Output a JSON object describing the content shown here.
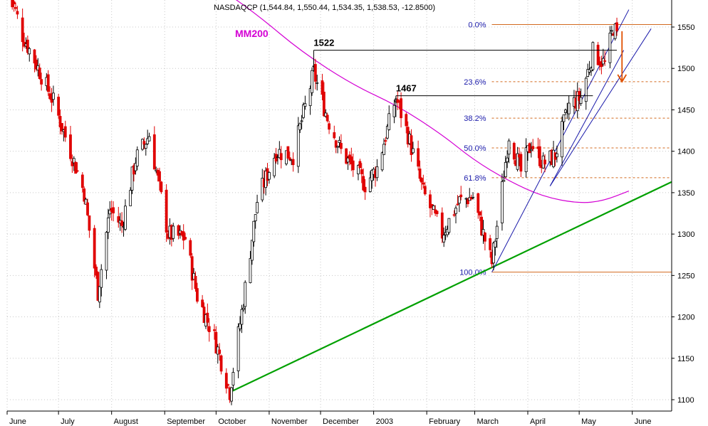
{
  "chart_data": {
    "type": "candlestick",
    "title": "NASDAQCP (1,544.84, 1,550.44, 1,534.35, 1,538.53, -12.8500)",
    "ylim": [
      1090,
      1580
    ],
    "y_ticks": [
      1100,
      1150,
      1200,
      1250,
      1300,
      1350,
      1400,
      1450,
      1500,
      1550
    ],
    "x_range": [
      "2002-06-01",
      "2003-06-24"
    ],
    "x_ticks": [
      {
        "label": "June",
        "date": "2002-06-01"
      },
      {
        "label": "July",
        "date": "2002-07-01"
      },
      {
        "label": "August",
        "date": "2002-08-01"
      },
      {
        "label": "September",
        "date": "2002-09-01"
      },
      {
        "label": "October",
        "date": "2002-10-01"
      },
      {
        "label": "November",
        "date": "2002-11-01"
      },
      {
        "label": "December",
        "date": "2002-12-01"
      },
      {
        "label": "2003",
        "date": "2003-01-01"
      },
      {
        "label": "February",
        "date": "2003-02-01"
      },
      {
        "label": "March",
        "date": "2003-03-01"
      },
      {
        "label": "April",
        "date": "2003-04-01"
      },
      {
        "label": "May",
        "date": "2003-05-01"
      },
      {
        "label": "June",
        "date": "2003-06-01"
      }
    ],
    "grid": true,
    "up_color": "#000000",
    "down_color": "#e00000",
    "price_path": [
      [
        "2002-06-03",
        1590
      ],
      [
        "2002-06-10",
        1540
      ],
      [
        "2002-06-17",
        1510
      ],
      [
        "2002-06-28",
        1460
      ],
      [
        "2002-07-08",
        1400
      ],
      [
        "2002-07-16",
        1350
      ],
      [
        "2002-07-24",
        1230
      ],
      [
        "2002-07-31",
        1330
      ],
      [
        "2002-08-07",
        1310
      ],
      [
        "2002-08-15",
        1390
      ],
      [
        "2002-08-23",
        1420
      ],
      [
        "2002-09-03",
        1300
      ],
      [
        "2002-09-13",
        1295
      ],
      [
        "2002-09-20",
        1225
      ],
      [
        "2002-09-30",
        1175
      ],
      [
        "2002-10-09",
        1110
      ],
      [
        "2002-10-17",
        1220
      ],
      [
        "2002-10-25",
        1340
      ],
      [
        "2002-11-05",
        1400
      ],
      [
        "2002-11-15",
        1395
      ],
      [
        "2002-11-27",
        1495
      ],
      [
        "2002-12-05",
        1440
      ],
      [
        "2002-12-13",
        1400
      ],
      [
        "2002-12-27",
        1360
      ],
      [
        "2003-01-03",
        1380
      ],
      [
        "2003-01-14",
        1465
      ],
      [
        "2003-01-21",
        1420
      ],
      [
        "2003-01-30",
        1350
      ],
      [
        "2003-02-10",
        1300
      ],
      [
        "2003-02-20",
        1340
      ],
      [
        "2003-02-28",
        1345
      ],
      [
        "2003-03-06",
        1300
      ],
      [
        "2003-03-11",
        1265
      ],
      [
        "2003-03-17",
        1355
      ],
      [
        "2003-03-21",
        1420
      ],
      [
        "2003-03-28",
        1375
      ],
      [
        "2003-04-03",
        1410
      ],
      [
        "2003-04-10",
        1385
      ],
      [
        "2003-04-17",
        1395
      ],
      [
        "2003-04-25",
        1455
      ],
      [
        "2003-05-02",
        1465
      ],
      [
        "2003-05-09",
        1520
      ],
      [
        "2003-05-16",
        1505
      ],
      [
        "2003-05-21",
        1550
      ],
      [
        "2003-05-23",
        1539
      ]
    ],
    "ma200": {
      "label": "MM200",
      "color": "#d400d4",
      "points": [
        [
          "2002-10-01",
          1600
        ],
        [
          "2002-10-25",
          1565
        ],
        [
          "2002-11-20",
          1520
        ],
        [
          "2002-12-20",
          1480
        ],
        [
          "2003-01-15",
          1455
        ],
        [
          "2003-02-10",
          1420
        ],
        [
          "2003-02-28",
          1390
        ],
        [
          "2003-03-20",
          1365
        ],
        [
          "2003-04-10",
          1345
        ],
        [
          "2003-05-01",
          1337
        ],
        [
          "2003-05-15",
          1340
        ],
        [
          "2003-05-30",
          1352
        ]
      ]
    },
    "swing_highs": [
      {
        "label": "1522",
        "value": 1522,
        "from": "2002-11-27",
        "to": "2003-05-23"
      },
      {
        "label": "1467",
        "value": 1467,
        "from": "2003-01-14",
        "to": "2003-05-09"
      }
    ],
    "fibonacci": {
      "color": "#d2691e",
      "from": "2003-03-11",
      "to": "2003-06-24",
      "levels": [
        {
          "label": "0.0%",
          "value": 1553
        },
        {
          "label": "23.6%",
          "value": 1484
        },
        {
          "label": "38.2%",
          "value": 1440
        },
        {
          "label": "50.0%",
          "value": 1404
        },
        {
          "label": "61.8%",
          "value": 1368
        },
        {
          "label": "100.0%",
          "value": 1254
        }
      ]
    },
    "trendlines": [
      {
        "name": "long-term-support",
        "color": "#00a000",
        "from": [
          "2002-10-09",
          1109
        ],
        "to": [
          "2003-06-24",
          1363
        ]
      },
      {
        "name": "blue-trend-1",
        "color": "#1a1aaa",
        "from": [
          "2003-03-11",
          1254
        ],
        "to": [
          "2003-05-30",
          1571
        ]
      },
      {
        "name": "blue-trend-2",
        "color": "#1a1aaa",
        "from": [
          "2003-04-14",
          1358
        ],
        "to": [
          "2003-06-12",
          1548
        ]
      },
      {
        "name": "blue-trend-3",
        "color": "#1a1aaa",
        "from": [
          "2003-04-14",
          1358
        ],
        "to": [
          "2003-05-27",
          1522
        ]
      }
    ],
    "arrow": {
      "color": "#e05000",
      "from": [
        "2003-05-26",
        1545
      ],
      "to": [
        "2003-05-26",
        1484
      ]
    }
  }
}
